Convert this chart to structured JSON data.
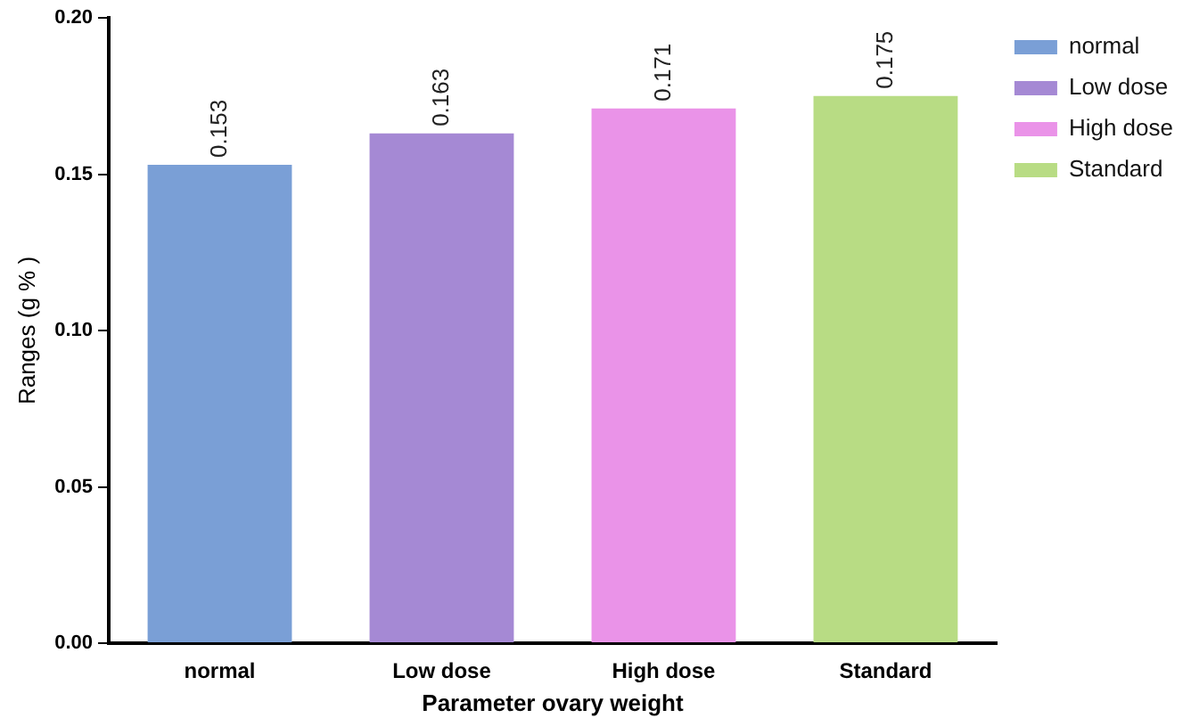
{
  "chart_data": {
    "type": "bar",
    "xlabel": "Parameter ovary weight",
    "ylabel": "Ranges (g % )",
    "categories": [
      "normal",
      "Low dose",
      "High dose",
      "Standard"
    ],
    "series": [
      {
        "name": "normal",
        "color": "#7a9fd6",
        "values": [
          0.153,
          null,
          null,
          null
        ]
      },
      {
        "name": "Low dose",
        "color": "#a589d4",
        "values": [
          null,
          0.163,
          null,
          null
        ]
      },
      {
        "name": "High dose",
        "color": "#ea93e8",
        "values": [
          null,
          null,
          0.171,
          null
        ]
      },
      {
        "name": "Standard",
        "color": "#b8dc84",
        "values": [
          null,
          null,
          null,
          0.175
        ]
      }
    ],
    "ylim": [
      0,
      0.2
    ],
    "yticks": [
      {
        "value": 0,
        "label": "0.00"
      },
      {
        "value": 0.05,
        "label": "0.05"
      },
      {
        "value": 0.1,
        "label": "0.10"
      },
      {
        "value": 0.15,
        "label": "0.15"
      },
      {
        "value": 0.2,
        "label": "0.20"
      }
    ],
    "data_labels": true,
    "legend": "top right",
    "grid": false
  }
}
